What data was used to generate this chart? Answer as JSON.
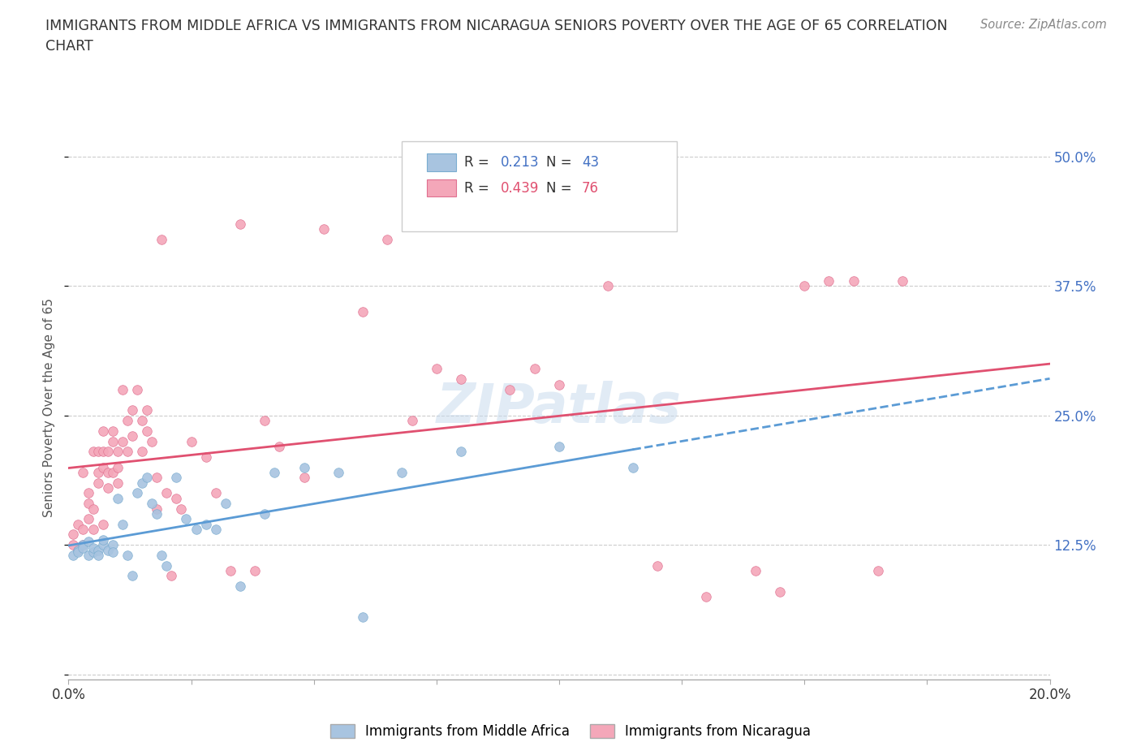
{
  "title_line1": "IMMIGRANTS FROM MIDDLE AFRICA VS IMMIGRANTS FROM NICARAGUA SENIORS POVERTY OVER THE AGE OF 65 CORRELATION",
  "title_line2": "CHART",
  "source": "Source: ZipAtlas.com",
  "ylabel": "Seniors Poverty Over the Age of 65",
  "xlim": [
    0.0,
    0.2
  ],
  "ylim": [
    -0.005,
    0.52
  ],
  "xticks": [
    0.0,
    0.025,
    0.05,
    0.075,
    0.1,
    0.125,
    0.15,
    0.175,
    0.2
  ],
  "xticklabels": [
    "0.0%",
    "",
    "",
    "",
    "",
    "",
    "",
    "",
    "20.0%"
  ],
  "yticks": [
    0.0,
    0.125,
    0.25,
    0.375,
    0.5
  ],
  "yticklabels": [
    "",
    "12.5%",
    "25.0%",
    "37.5%",
    "50.0%"
  ],
  "grid_color": "#cccccc",
  "background_color": "#ffffff",
  "watermark": "ZIPatlas",
  "series1_label": "Immigrants from Middle Africa",
  "series1_color": "#a8c4e0",
  "series1_edge_color": "#7aadd0",
  "series1_R": "0.213",
  "series1_N": "43",
  "series1_line_color": "#5b9bd5",
  "series1_line_style": "--",
  "series2_label": "Immigrants from Nicaragua",
  "series2_color": "#f4a7b9",
  "series2_edge_color": "#e07090",
  "series2_R": "0.439",
  "series2_N": "76",
  "series2_line_color": "#e05070",
  "series2_line_style": "-",
  "series1_x": [
    0.001,
    0.002,
    0.002,
    0.003,
    0.003,
    0.004,
    0.004,
    0.005,
    0.005,
    0.006,
    0.006,
    0.007,
    0.007,
    0.008,
    0.009,
    0.009,
    0.01,
    0.011,
    0.012,
    0.013,
    0.014,
    0.015,
    0.016,
    0.017,
    0.018,
    0.019,
    0.02,
    0.022,
    0.024,
    0.026,
    0.028,
    0.03,
    0.032,
    0.035,
    0.04,
    0.042,
    0.048,
    0.055,
    0.06,
    0.068,
    0.08,
    0.1,
    0.115
  ],
  "series1_y": [
    0.115,
    0.12,
    0.118,
    0.125,
    0.122,
    0.128,
    0.115,
    0.118,
    0.122,
    0.12,
    0.115,
    0.125,
    0.13,
    0.12,
    0.125,
    0.118,
    0.17,
    0.145,
    0.115,
    0.095,
    0.175,
    0.185,
    0.19,
    0.165,
    0.155,
    0.115,
    0.105,
    0.19,
    0.15,
    0.14,
    0.145,
    0.14,
    0.165,
    0.085,
    0.155,
    0.195,
    0.2,
    0.195,
    0.055,
    0.195,
    0.215,
    0.22,
    0.2
  ],
  "series2_x": [
    0.001,
    0.001,
    0.002,
    0.002,
    0.003,
    0.003,
    0.003,
    0.004,
    0.004,
    0.004,
    0.005,
    0.005,
    0.005,
    0.006,
    0.006,
    0.006,
    0.007,
    0.007,
    0.007,
    0.007,
    0.008,
    0.008,
    0.008,
    0.009,
    0.009,
    0.009,
    0.01,
    0.01,
    0.01,
    0.011,
    0.011,
    0.012,
    0.012,
    0.013,
    0.013,
    0.014,
    0.015,
    0.015,
    0.016,
    0.016,
    0.017,
    0.018,
    0.018,
    0.019,
    0.02,
    0.021,
    0.022,
    0.023,
    0.025,
    0.028,
    0.03,
    0.033,
    0.035,
    0.038,
    0.04,
    0.043,
    0.048,
    0.052,
    0.06,
    0.065,
    0.07,
    0.075,
    0.08,
    0.09,
    0.095,
    0.1,
    0.11,
    0.12,
    0.13,
    0.14,
    0.145,
    0.15,
    0.155,
    0.16,
    0.165,
    0.17
  ],
  "series2_y": [
    0.125,
    0.135,
    0.12,
    0.145,
    0.195,
    0.14,
    0.125,
    0.175,
    0.165,
    0.15,
    0.215,
    0.16,
    0.14,
    0.215,
    0.195,
    0.185,
    0.235,
    0.215,
    0.2,
    0.145,
    0.215,
    0.195,
    0.18,
    0.235,
    0.225,
    0.195,
    0.215,
    0.2,
    0.185,
    0.275,
    0.225,
    0.245,
    0.215,
    0.255,
    0.23,
    0.275,
    0.245,
    0.215,
    0.255,
    0.235,
    0.225,
    0.19,
    0.16,
    0.42,
    0.175,
    0.095,
    0.17,
    0.16,
    0.225,
    0.21,
    0.175,
    0.1,
    0.435,
    0.1,
    0.245,
    0.22,
    0.19,
    0.43,
    0.35,
    0.42,
    0.245,
    0.295,
    0.285,
    0.275,
    0.295,
    0.28,
    0.375,
    0.105,
    0.075,
    0.1,
    0.08,
    0.375,
    0.38,
    0.38,
    0.1,
    0.38
  ]
}
